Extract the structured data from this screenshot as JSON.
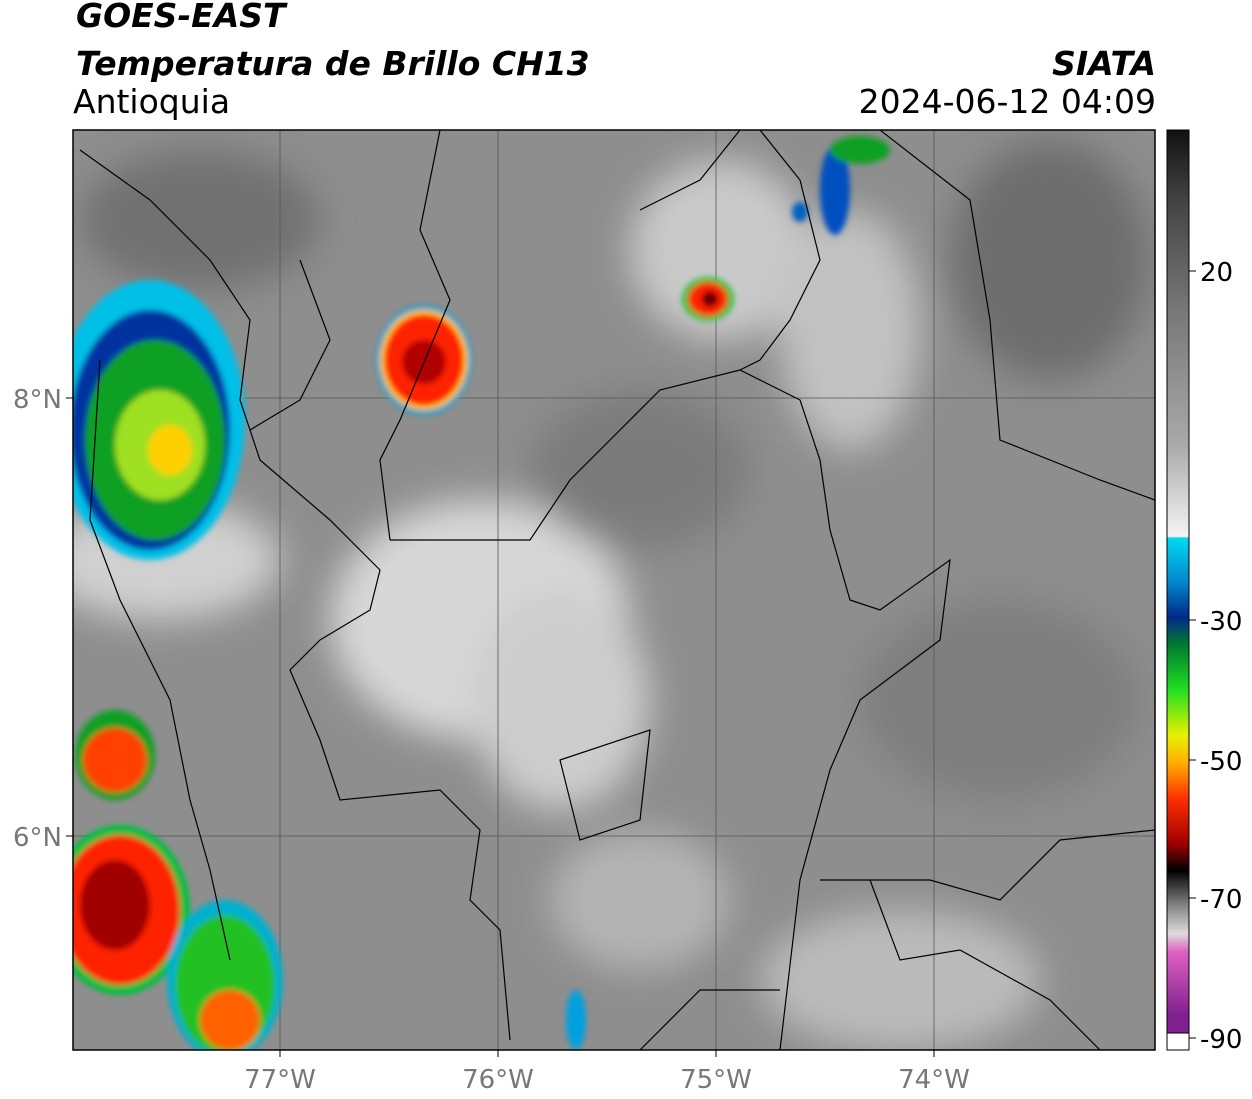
{
  "header": {
    "title": "GOES-EAST",
    "subtitle": "Temperatura de Brillo CH13",
    "region": "Antioquia",
    "source": "SIATA",
    "timestamp": "2024-06-12 04:09"
  },
  "map": {
    "lat_labels": [
      "8°N",
      "6°N"
    ],
    "lon_labels": [
      "77°W",
      "76°W",
      "75°W",
      "74°W"
    ]
  },
  "colorbar": {
    "labels": [
      "20",
      "-30",
      "-50",
      "-70",
      "-90"
    ]
  }
}
